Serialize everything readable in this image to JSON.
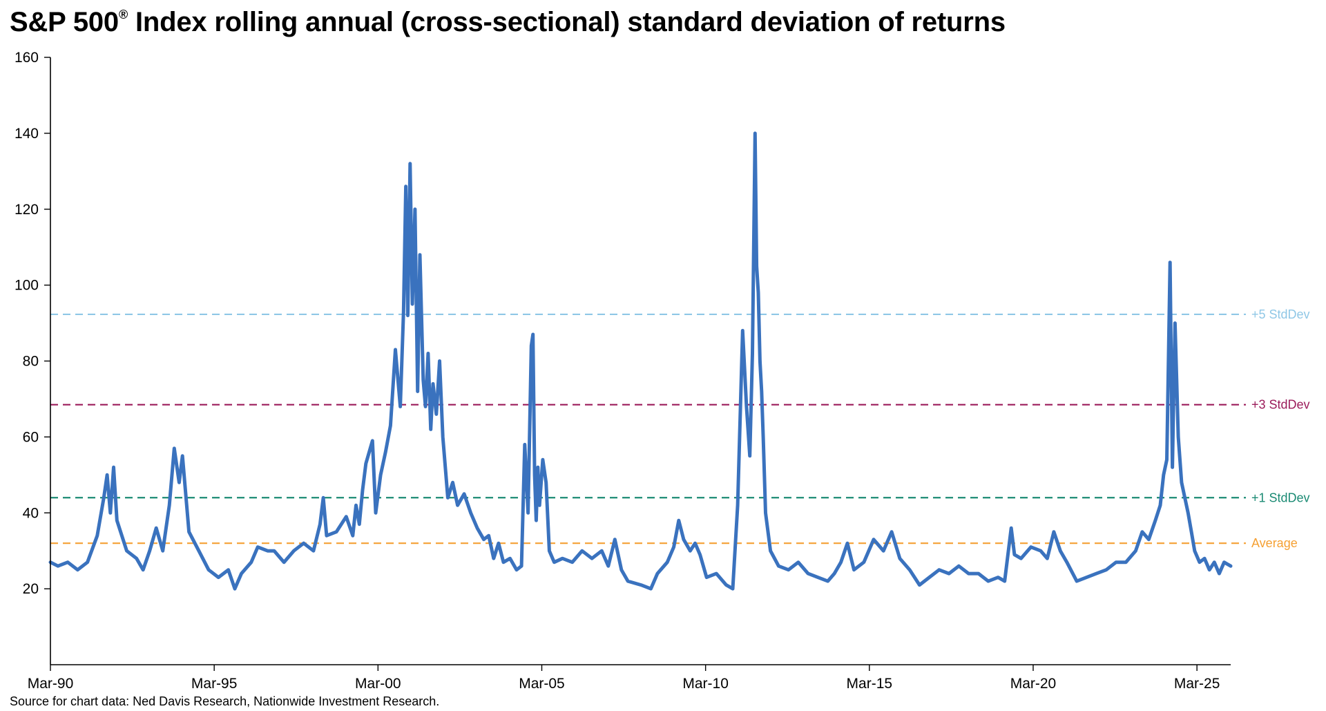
{
  "chart_data": {
    "type": "line",
    "title_main": "S&P 500",
    "title_mark": "®",
    "title_rest": " Index rolling annual (cross-sectional) standard deviation of returns",
    "source": "Source for chart data: Ned Davis Research, Nationwide Investment Research.",
    "xlabel": "",
    "ylabel": "",
    "x_range": [
      1990.17,
      2026.2
    ],
    "ylim": [
      0,
      160
    ],
    "y_ticks": [
      20,
      40,
      60,
      80,
      100,
      120,
      140,
      160
    ],
    "x_ticks": [
      {
        "label": "Mar-90",
        "x": 1990.17
      },
      {
        "label": "Mar-95",
        "x": 1995.17
      },
      {
        "label": "Mar-00",
        "x": 2000.17
      },
      {
        "label": "Mar-05",
        "x": 2005.17
      },
      {
        "label": "Mar-10",
        "x": 2010.17
      },
      {
        "label": "Mar-15",
        "x": 2015.17
      },
      {
        "label": "Mar-20",
        "x": 2020.17
      },
      {
        "label": "Mar-25",
        "x": 2025.17
      }
    ],
    "grid": false,
    "reference_lines": [
      {
        "name": "Average",
        "value": 32,
        "color": "#F5A033"
      },
      {
        "name": "+1 StdDev",
        "value": 44,
        "color": "#1A8A73"
      },
      {
        "name": "+3 StdDev",
        "value": 68.5,
        "color": "#9B1B5A"
      },
      {
        "name": "+5 StdDev",
        "value": 92.3,
        "color": "#8FC7E6"
      }
    ],
    "series": [
      {
        "color": "#3A72BE",
        "points": [
          [
            1990.17,
            27
          ],
          [
            1990.4,
            26
          ],
          [
            1990.7,
            27
          ],
          [
            1991.0,
            25
          ],
          [
            1991.3,
            27
          ],
          [
            1991.6,
            34
          ],
          [
            1991.8,
            44
          ],
          [
            1991.9,
            50
          ],
          [
            1992.0,
            40
          ],
          [
            1992.1,
            52
          ],
          [
            1992.2,
            38
          ],
          [
            1992.5,
            30
          ],
          [
            1992.8,
            28
          ],
          [
            1993.0,
            25
          ],
          [
            1993.2,
            30
          ],
          [
            1993.4,
            36
          ],
          [
            1993.6,
            30
          ],
          [
            1993.8,
            42
          ],
          [
            1993.95,
            57
          ],
          [
            1994.1,
            48
          ],
          [
            1994.2,
            55
          ],
          [
            1994.4,
            35
          ],
          [
            1994.7,
            30
          ],
          [
            1995.0,
            25
          ],
          [
            1995.3,
            23
          ],
          [
            1995.6,
            25
          ],
          [
            1995.8,
            20
          ],
          [
            1996.0,
            24
          ],
          [
            1996.3,
            27
          ],
          [
            1996.5,
            31
          ],
          [
            1996.8,
            30
          ],
          [
            1997.0,
            30
          ],
          [
            1997.3,
            27
          ],
          [
            1997.6,
            30
          ],
          [
            1997.9,
            32
          ],
          [
            1998.2,
            30
          ],
          [
            1998.4,
            37
          ],
          [
            1998.5,
            44
          ],
          [
            1998.6,
            34
          ],
          [
            1998.9,
            35
          ],
          [
            1999.2,
            39
          ],
          [
            1999.4,
            34
          ],
          [
            1999.5,
            42
          ],
          [
            1999.6,
            37
          ],
          [
            1999.7,
            46
          ],
          [
            1999.8,
            53
          ],
          [
            2000.0,
            59
          ],
          [
            2000.1,
            40
          ],
          [
            2000.25,
            50
          ],
          [
            2000.4,
            56
          ],
          [
            2000.55,
            63
          ],
          [
            2000.7,
            83
          ],
          [
            2000.85,
            68
          ],
          [
            2000.95,
            93
          ],
          [
            2001.02,
            126
          ],
          [
            2001.08,
            92
          ],
          [
            2001.15,
            132
          ],
          [
            2001.22,
            95
          ],
          [
            2001.3,
            120
          ],
          [
            2001.38,
            72
          ],
          [
            2001.45,
            108
          ],
          [
            2001.55,
            75
          ],
          [
            2001.62,
            68
          ],
          [
            2001.7,
            82
          ],
          [
            2001.78,
            62
          ],
          [
            2001.85,
            74
          ],
          [
            2001.95,
            66
          ],
          [
            2002.05,
            80
          ],
          [
            2002.15,
            60
          ],
          [
            2002.3,
            44
          ],
          [
            2002.45,
            48
          ],
          [
            2002.6,
            42
          ],
          [
            2002.8,
            45
          ],
          [
            2003.0,
            40
          ],
          [
            2003.2,
            36
          ],
          [
            2003.4,
            33
          ],
          [
            2003.55,
            34
          ],
          [
            2003.7,
            28
          ],
          [
            2003.85,
            32
          ],
          [
            2004.0,
            27
          ],
          [
            2004.2,
            28
          ],
          [
            2004.4,
            25
          ],
          [
            2004.55,
            26
          ],
          [
            2004.65,
            58
          ],
          [
            2004.75,
            40
          ],
          [
            2004.85,
            84
          ],
          [
            2004.9,
            87
          ],
          [
            2004.95,
            50
          ],
          [
            2005.0,
            38
          ],
          [
            2005.05,
            52
          ],
          [
            2005.1,
            42
          ],
          [
            2005.2,
            54
          ],
          [
            2005.3,
            48
          ],
          [
            2005.4,
            30
          ],
          [
            2005.55,
            27
          ],
          [
            2005.8,
            28
          ],
          [
            2006.1,
            27
          ],
          [
            2006.4,
            30
          ],
          [
            2006.7,
            28
          ],
          [
            2007.0,
            30
          ],
          [
            2007.2,
            26
          ],
          [
            2007.4,
            33
          ],
          [
            2007.6,
            25
          ],
          [
            2007.8,
            22
          ],
          [
            2008.2,
            21
          ],
          [
            2008.5,
            20
          ],
          [
            2008.7,
            24
          ],
          [
            2009.0,
            27
          ],
          [
            2009.2,
            31
          ],
          [
            2009.35,
            38
          ],
          [
            2009.5,
            33
          ],
          [
            2009.7,
            30
          ],
          [
            2009.85,
            32
          ],
          [
            2010.0,
            29
          ],
          [
            2010.2,
            23
          ],
          [
            2010.5,
            24
          ],
          [
            2010.8,
            21
          ],
          [
            2011.0,
            20
          ],
          [
            2011.15,
            42
          ],
          [
            2011.3,
            88
          ],
          [
            2011.42,
            68
          ],
          [
            2011.52,
            55
          ],
          [
            2011.6,
            82
          ],
          [
            2011.68,
            140
          ],
          [
            2011.73,
            105
          ],
          [
            2011.78,
            98
          ],
          [
            2011.83,
            80
          ],
          [
            2011.88,
            72
          ],
          [
            2011.93,
            60
          ],
          [
            2012.0,
            40
          ],
          [
            2012.15,
            30
          ],
          [
            2012.4,
            26
          ],
          [
            2012.7,
            25
          ],
          [
            2013.0,
            27
          ],
          [
            2013.3,
            24
          ],
          [
            2013.6,
            23
          ],
          [
            2013.9,
            22
          ],
          [
            2014.1,
            24
          ],
          [
            2014.3,
            27
          ],
          [
            2014.5,
            32
          ],
          [
            2014.7,
            25
          ],
          [
            2015.0,
            27
          ],
          [
            2015.3,
            33
          ],
          [
            2015.6,
            30
          ],
          [
            2015.85,
            35
          ],
          [
            2016.1,
            28
          ],
          [
            2016.4,
            25
          ],
          [
            2016.7,
            21
          ],
          [
            2017.0,
            23
          ],
          [
            2017.3,
            25
          ],
          [
            2017.6,
            24
          ],
          [
            2017.9,
            26
          ],
          [
            2018.2,
            24
          ],
          [
            2018.5,
            24
          ],
          [
            2018.8,
            22
          ],
          [
            2019.1,
            23
          ],
          [
            2019.3,
            22
          ],
          [
            2019.5,
            36
          ],
          [
            2019.6,
            29
          ],
          [
            2019.8,
            28
          ],
          [
            2020.1,
            31
          ],
          [
            2020.4,
            30
          ],
          [
            2020.6,
            28
          ],
          [
            2020.8,
            35
          ],
          [
            2021.0,
            30
          ],
          [
            2021.2,
            27
          ],
          [
            2021.5,
            22
          ],
          [
            2021.8,
            23
          ],
          [
            2022.1,
            24
          ],
          [
            2022.4,
            25
          ],
          [
            2022.7,
            27
          ],
          [
            2023.0,
            27
          ],
          [
            2023.3,
            30
          ],
          [
            2023.5,
            35
          ],
          [
            2023.7,
            33
          ],
          [
            2023.9,
            38
          ],
          [
            2024.05,
            42
          ],
          [
            2024.15,
            50
          ],
          [
            2024.25,
            54
          ],
          [
            2024.35,
            106
          ],
          [
            2024.42,
            52
          ],
          [
            2024.5,
            90
          ],
          [
            2024.6,
            60
          ],
          [
            2024.7,
            48
          ],
          [
            2024.8,
            44
          ],
          [
            2024.9,
            40
          ],
          [
            2025.0,
            35
          ],
          [
            2025.1,
            30
          ],
          [
            2025.25,
            27
          ],
          [
            2025.4,
            28
          ],
          [
            2025.55,
            25
          ],
          [
            2025.7,
            27
          ],
          [
            2025.85,
            24
          ],
          [
            2026.0,
            27
          ],
          [
            2026.2,
            26
          ]
        ]
      }
    ]
  }
}
